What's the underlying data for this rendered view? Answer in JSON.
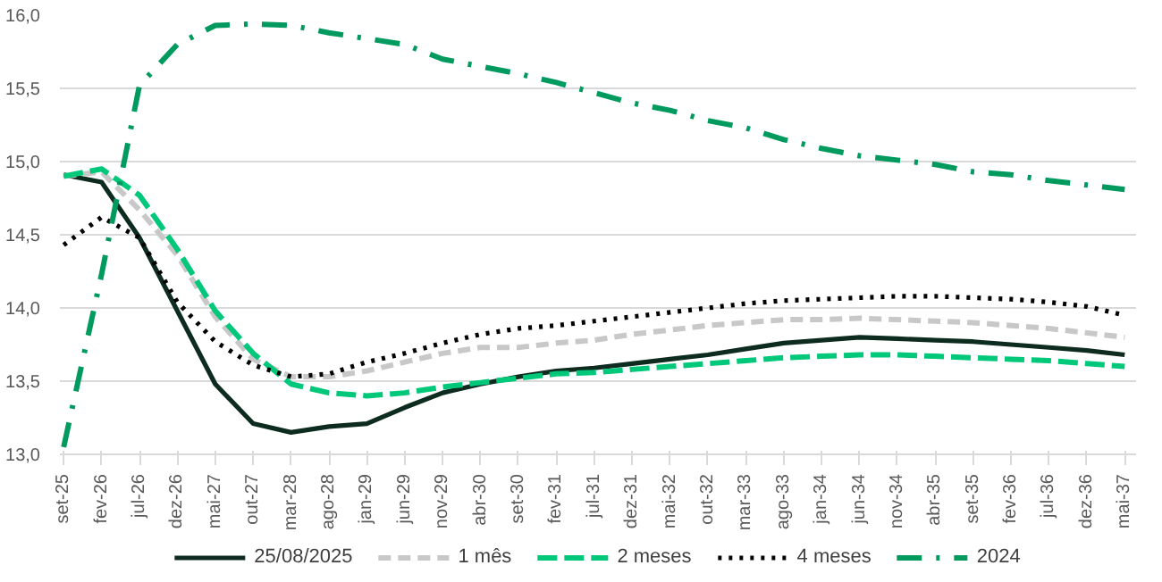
{
  "chart_data": {
    "type": "line",
    "categories": [
      "set-25",
      "fev-26",
      "jul-26",
      "dez-26",
      "mai-27",
      "out-27",
      "mar-28",
      "ago-28",
      "jan-29",
      "jun-29",
      "nov-29",
      "abr-30",
      "set-30",
      "fev-31",
      "jul-31",
      "dez-31",
      "mai-32",
      "out-32",
      "mar-33",
      "ago-33",
      "jan-34",
      "jun-34",
      "nov-34",
      "abr-35",
      "set-35",
      "fev-36",
      "jul-36",
      "dez-36",
      "mai-37"
    ],
    "series": [
      {
        "name": "25/08/2025",
        "color": "#0d2b1e",
        "line_style": "solid",
        "values": [
          14.91,
          14.86,
          14.48,
          13.98,
          13.48,
          13.21,
          13.15,
          13.19,
          13.21,
          13.32,
          13.42,
          13.48,
          13.53,
          13.57,
          13.59,
          13.62,
          13.65,
          13.68,
          13.72,
          13.76,
          13.78,
          13.8,
          13.79,
          13.78,
          13.77,
          13.75,
          13.73,
          13.71,
          13.68
        ]
      },
      {
        "name": "1 mês",
        "color": "#c8c8c8",
        "line_style": "dashed",
        "values": [
          14.9,
          14.93,
          14.67,
          14.36,
          13.94,
          13.65,
          13.53,
          13.53,
          13.57,
          13.63,
          13.69,
          13.73,
          13.73,
          13.76,
          13.78,
          13.82,
          13.85,
          13.88,
          13.9,
          13.92,
          13.92,
          13.93,
          13.92,
          13.91,
          13.9,
          13.88,
          13.86,
          13.83,
          13.8
        ]
      },
      {
        "name": "2 meses",
        "color": "#00c87a",
        "line_style": "dashed",
        "values": [
          14.9,
          14.95,
          14.77,
          14.4,
          13.98,
          13.69,
          13.48,
          13.42,
          13.4,
          13.42,
          13.46,
          13.49,
          13.52,
          13.55,
          13.56,
          13.58,
          13.6,
          13.62,
          13.64,
          13.66,
          13.67,
          13.68,
          13.68,
          13.67,
          13.66,
          13.65,
          13.64,
          13.62,
          13.6
        ]
      },
      {
        "name": "4 meses",
        "color": "#000000",
        "line_style": "dotted",
        "values": [
          14.43,
          14.62,
          14.48,
          14.04,
          13.77,
          13.61,
          13.53,
          13.55,
          13.63,
          13.69,
          13.76,
          13.82,
          13.86,
          13.88,
          13.91,
          13.94,
          13.97,
          14.0,
          14.03,
          14.05,
          14.06,
          14.07,
          14.08,
          14.08,
          14.07,
          14.06,
          14.04,
          14.01,
          13.95
        ]
      },
      {
        "name": "2024",
        "color": "#009a5e",
        "line_style": "dashdot",
        "values": [
          13.05,
          14.23,
          15.52,
          15.8,
          15.93,
          15.94,
          15.93,
          15.88,
          15.84,
          15.8,
          15.7,
          15.65,
          15.6,
          15.54,
          15.47,
          15.4,
          15.35,
          15.28,
          15.23,
          15.15,
          15.09,
          15.04,
          15.01,
          14.98,
          14.93,
          14.91,
          14.87,
          14.84,
          14.81
        ]
      }
    ],
    "ylim": [
      13,
      16
    ],
    "yticks": [
      {
        "value": 13,
        "label": "13,0"
      },
      {
        "value": 13.5,
        "label": "13,5"
      },
      {
        "value": 14,
        "label": "14,0"
      },
      {
        "value": 14.5,
        "label": "14,5"
      },
      {
        "value": 15,
        "label": "15,0"
      },
      {
        "value": 15.5,
        "label": "15,5"
      },
      {
        "value": 16,
        "label": "16,0"
      }
    ],
    "grid": "y",
    "legend": "bottom",
    "marker": "none"
  }
}
